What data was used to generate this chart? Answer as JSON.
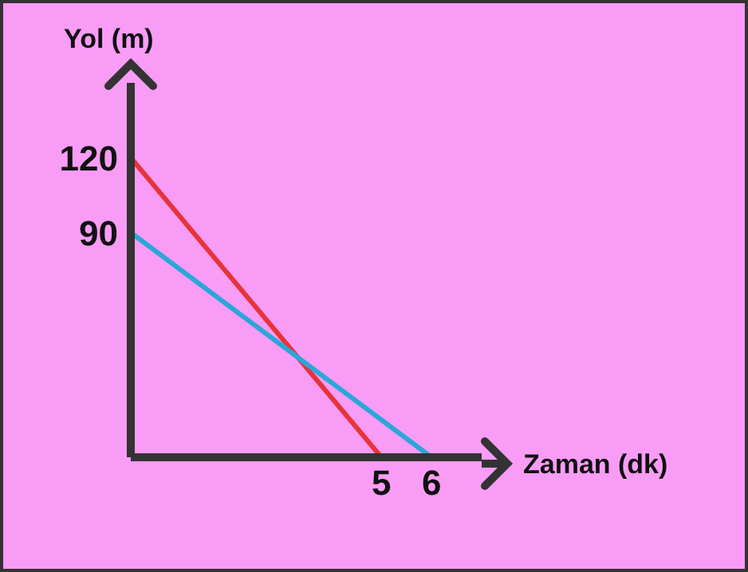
{
  "chart_data": {
    "type": "line",
    "xlabel": "Zaman (dk)",
    "ylabel": "Yol (m)",
    "xlim": [
      0,
      7
    ],
    "ylim": [
      0,
      150
    ],
    "xticks": [
      5,
      6
    ],
    "yticks": [
      90,
      120
    ],
    "marker": "none",
    "series": [
      {
        "color": "#e8333a",
        "x": [
          0,
          5
        ],
        "values": [
          120,
          0
        ]
      },
      {
        "color": "#2aa7d8",
        "x": [
          0,
          6
        ],
        "values": [
          90,
          0
        ]
      }
    ]
  }
}
